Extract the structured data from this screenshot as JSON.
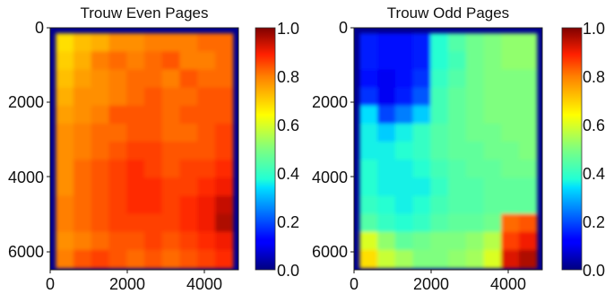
{
  "chart_data": [
    {
      "type": "heatmap",
      "title": "Trouw Even Pages",
      "xlabel": "",
      "ylabel": "",
      "xlim": [
        0,
        5000
      ],
      "ylim": [
        6500,
        0
      ],
      "x_ticks": [
        "0",
        "2000",
        "4000"
      ],
      "y_ticks": [
        "0",
        "2000",
        "4000",
        "6000"
      ],
      "colorbar": {
        "min": 0.0,
        "max": 1.0,
        "labels": [
          "0.0",
          "0.2",
          "0.4",
          "0.6",
          "0.8",
          "1.0"
        ]
      },
      "grid_x": [
        0,
        500,
        1000,
        1500,
        2000,
        2500,
        3000,
        3500,
        4000,
        4500
      ],
      "grid_y": [
        0,
        500,
        1000,
        1500,
        2000,
        2500,
        3000,
        3500,
        4000,
        4500,
        5000,
        5500,
        6000
      ],
      "values": [
        [
          0.68,
          0.72,
          0.74,
          0.78,
          0.78,
          0.8,
          0.8,
          0.8,
          0.82,
          0.82
        ],
        [
          0.7,
          0.74,
          0.8,
          0.82,
          0.8,
          0.82,
          0.84,
          0.8,
          0.8,
          0.82
        ],
        [
          0.72,
          0.76,
          0.78,
          0.8,
          0.82,
          0.82,
          0.8,
          0.84,
          0.82,
          0.82
        ],
        [
          0.74,
          0.78,
          0.78,
          0.8,
          0.82,
          0.84,
          0.82,
          0.82,
          0.84,
          0.84
        ],
        [
          0.76,
          0.78,
          0.8,
          0.84,
          0.84,
          0.84,
          0.82,
          0.84,
          0.84,
          0.84
        ],
        [
          0.78,
          0.8,
          0.82,
          0.82,
          0.84,
          0.84,
          0.82,
          0.82,
          0.84,
          0.86
        ],
        [
          0.78,
          0.8,
          0.82,
          0.84,
          0.86,
          0.86,
          0.84,
          0.84,
          0.84,
          0.86
        ],
        [
          0.78,
          0.82,
          0.84,
          0.86,
          0.88,
          0.86,
          0.84,
          0.86,
          0.86,
          0.88
        ],
        [
          0.78,
          0.82,
          0.84,
          0.86,
          0.88,
          0.88,
          0.86,
          0.86,
          0.88,
          0.9
        ],
        [
          0.8,
          0.82,
          0.84,
          0.86,
          0.88,
          0.88,
          0.86,
          0.88,
          0.9,
          0.94
        ],
        [
          0.8,
          0.82,
          0.84,
          0.86,
          0.86,
          0.86,
          0.86,
          0.88,
          0.9,
          0.96
        ],
        [
          0.78,
          0.8,
          0.82,
          0.84,
          0.84,
          0.86,
          0.84,
          0.86,
          0.88,
          0.9
        ],
        [
          0.8,
          0.84,
          0.86,
          0.84,
          0.82,
          0.84,
          0.82,
          0.84,
          0.86,
          0.88
        ]
      ]
    },
    {
      "type": "heatmap",
      "title": "Trouw Odd Pages",
      "xlabel": "",
      "ylabel": "",
      "xlim": [
        0,
        5000
      ],
      "ylim": [
        6500,
        0
      ],
      "x_ticks": [
        "0",
        "2000",
        "4000"
      ],
      "y_ticks": [
        "0",
        "2000",
        "4000",
        "6000"
      ],
      "colorbar": {
        "min": 0.0,
        "max": 1.0,
        "labels": [
          "0.0",
          "0.2",
          "0.4",
          "0.6",
          "0.8",
          "1.0"
        ]
      },
      "grid_x": [
        0,
        500,
        1000,
        1500,
        2000,
        2500,
        3000,
        3500,
        4000,
        4500
      ],
      "grid_y": [
        0,
        500,
        1000,
        1500,
        2000,
        2500,
        3000,
        3500,
        4000,
        4500,
        5000,
        5500,
        6000
      ],
      "values": [
        [
          0.14,
          0.12,
          0.12,
          0.14,
          0.38,
          0.44,
          0.48,
          0.5,
          0.52,
          0.52
        ],
        [
          0.14,
          0.12,
          0.12,
          0.14,
          0.38,
          0.42,
          0.48,
          0.5,
          0.52,
          0.52
        ],
        [
          0.12,
          0.1,
          0.12,
          0.16,
          0.4,
          0.44,
          0.48,
          0.5,
          0.5,
          0.5
        ],
        [
          0.16,
          0.1,
          0.14,
          0.2,
          0.42,
          0.46,
          0.48,
          0.5,
          0.5,
          0.5
        ],
        [
          0.34,
          0.18,
          0.24,
          0.32,
          0.42,
          0.46,
          0.48,
          0.5,
          0.5,
          0.5
        ],
        [
          0.36,
          0.32,
          0.36,
          0.4,
          0.44,
          0.46,
          0.48,
          0.48,
          0.5,
          0.5
        ],
        [
          0.36,
          0.36,
          0.38,
          0.4,
          0.44,
          0.46,
          0.46,
          0.48,
          0.48,
          0.5
        ],
        [
          0.38,
          0.36,
          0.36,
          0.38,
          0.42,
          0.44,
          0.46,
          0.46,
          0.48,
          0.48
        ],
        [
          0.38,
          0.36,
          0.36,
          0.36,
          0.4,
          0.44,
          0.44,
          0.46,
          0.46,
          0.46
        ],
        [
          0.4,
          0.38,
          0.36,
          0.38,
          0.42,
          0.44,
          0.44,
          0.46,
          0.46,
          0.46
        ],
        [
          0.44,
          0.4,
          0.38,
          0.4,
          0.44,
          0.46,
          0.46,
          0.48,
          0.82,
          0.84
        ],
        [
          0.6,
          0.52,
          0.46,
          0.48,
          0.5,
          0.5,
          0.52,
          0.56,
          0.86,
          0.9
        ],
        [
          0.68,
          0.58,
          0.54,
          0.5,
          0.5,
          0.52,
          0.54,
          0.6,
          0.92,
          0.96
        ]
      ]
    }
  ]
}
